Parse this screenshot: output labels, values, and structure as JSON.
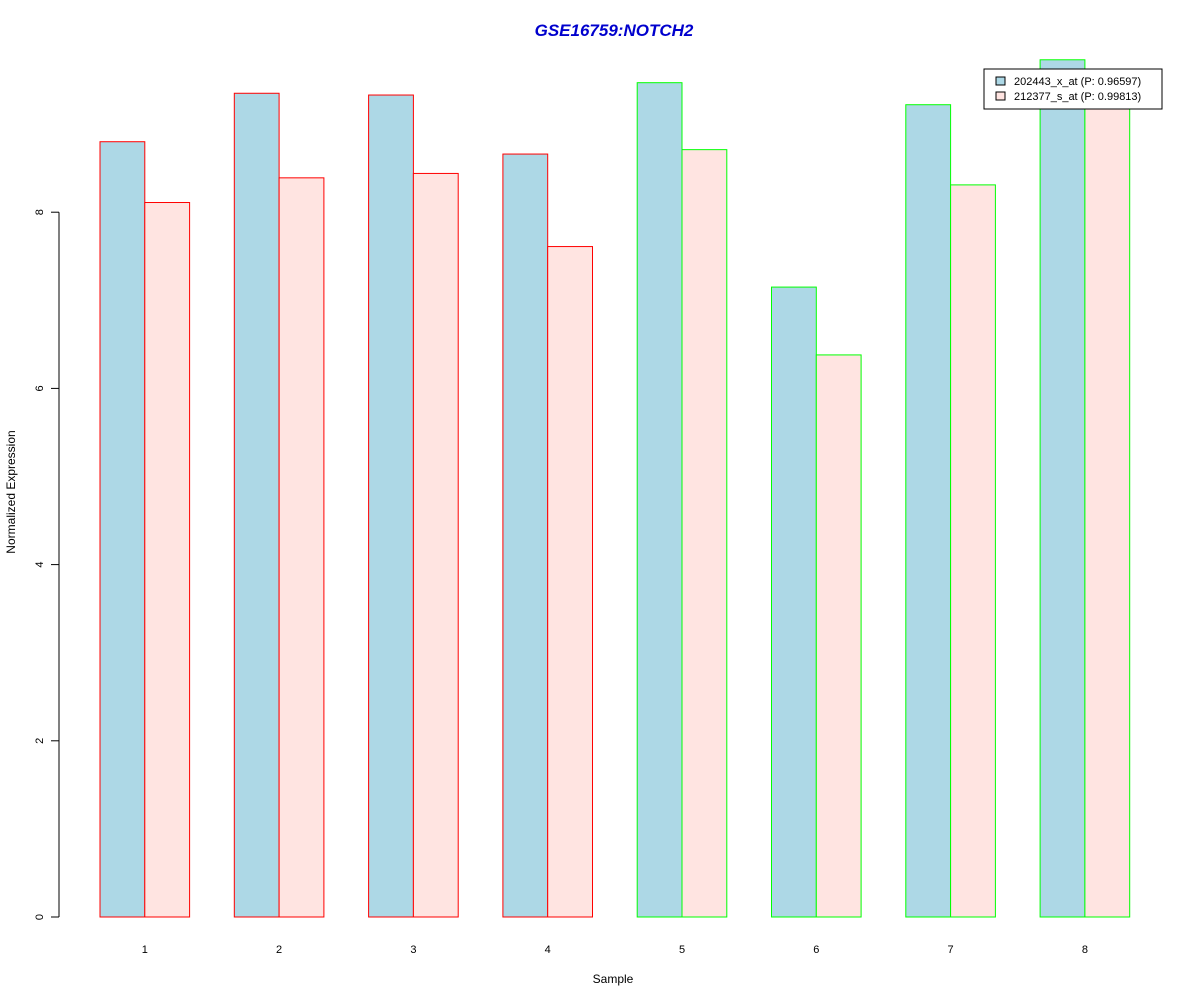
{
  "chart_data": {
    "type": "bar",
    "title": "GSE16759:NOTCH2",
    "xlabel": "Sample",
    "ylabel": "Normalized Expression",
    "categories": [
      "1",
      "2",
      "3",
      "4",
      "5",
      "6",
      "7",
      "8"
    ],
    "yticks": [
      "0",
      "2",
      "4",
      "6",
      "8"
    ],
    "ylim": [
      0,
      9.9
    ],
    "grid": false,
    "legend_position": "top-right",
    "series": [
      {
        "name": "202443_x_at (P: 0.96597)",
        "fill": "#add8e6",
        "values": [
          8.8,
          9.35,
          9.33,
          8.66,
          9.47,
          7.15,
          9.22,
          9.73
        ]
      },
      {
        "name": "212377_s_at (P: 0.99813)",
        "fill": "#ffe4e1",
        "values": [
          8.11,
          8.39,
          8.44,
          7.61,
          8.71,
          6.38,
          8.31,
          9.4
        ]
      }
    ],
    "group_border_colors": [
      "#ff0000",
      "#ff0000",
      "#ff0000",
      "#ff0000",
      "#00ff00",
      "#00ff00",
      "#00ff00",
      "#00ff00"
    ]
  }
}
